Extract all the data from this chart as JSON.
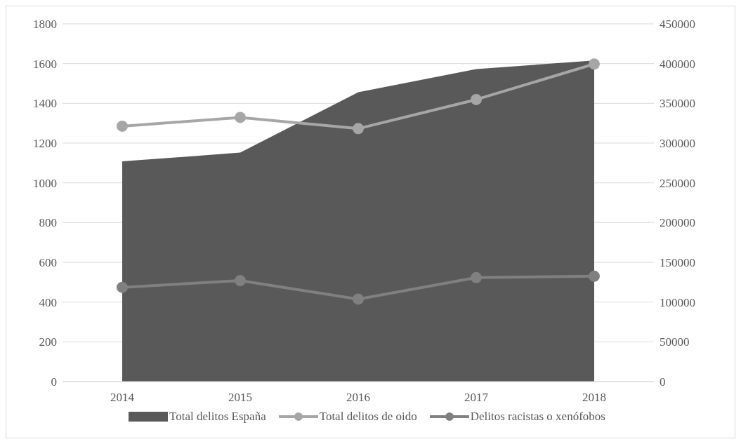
{
  "chart_data": {
    "type": "line",
    "categories": [
      "2014",
      "2015",
      "2016",
      "2017",
      "2018"
    ],
    "series": [
      {
        "name": "Total delitos España",
        "type": "area",
        "axis": "y2",
        "color": "#595959",
        "marker": "none",
        "values": [
          277000,
          288000,
          364000,
          393000,
          404000
        ]
      },
      {
        "name": "Total delitos de oido",
        "color": "#a6a6a6",
        "values": [
          1285,
          1329,
          1273,
          1419,
          1598
        ]
      },
      {
        "name": "Delitos racistas o xenófobos",
        "color": "#808080",
        "values": [
          474,
          508,
          415,
          523,
          530
        ]
      }
    ],
    "ylim": [
      0,
      1800
    ],
    "yticks": [
      0,
      200,
      400,
      600,
      800,
      1000,
      1200,
      1400,
      1600,
      1800
    ],
    "y2lim": [
      0,
      450000
    ],
    "y2ticks": [
      0,
      50000,
      100000,
      150000,
      200000,
      250000,
      300000,
      350000,
      400000,
      450000
    ],
    "grid": "y",
    "legend": "bottom",
    "marker": "circle",
    "line_style": "solid"
  }
}
